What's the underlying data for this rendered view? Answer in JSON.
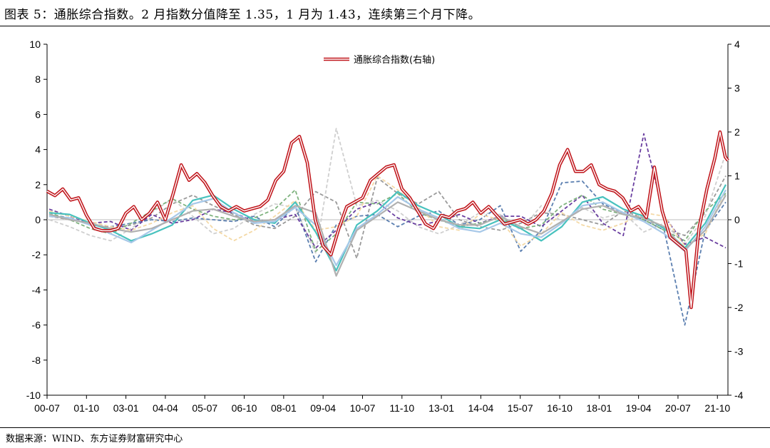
{
  "title": "图表 5：通胀综合指数。2 月指数分值降至 1.35，1 月为 1.43，连续第三个月下降。",
  "source": "数据来源：WIND、东方证券财富研究中心",
  "chart_data": {
    "type": "line",
    "title": "",
    "xlabel": "",
    "ylabel": "",
    "left_ylim": [
      -10,
      10
    ],
    "right_ylim": [
      -4,
      4
    ],
    "left_ticks": [
      "10",
      "8",
      "6",
      "4",
      "2",
      "0",
      "-2",
      "-4",
      "-6",
      "-8",
      "-10"
    ],
    "right_ticks": [
      "4",
      "3",
      "2",
      "1",
      "0",
      "-1",
      "-2",
      "-3",
      "-4"
    ],
    "x_tick_labels": [
      "00-07",
      "01-10",
      "03-01",
      "04-04",
      "05-07",
      "06-10",
      "08-01",
      "09-04",
      "10-07",
      "11-10",
      "13-01",
      "14-04",
      "15-07",
      "16-10",
      "18-01",
      "19-04",
      "20-07",
      "21-10"
    ],
    "legend": [
      {
        "name": "通胀综合指数(右轴)",
        "color": "#c0161c",
        "style": "double-line"
      }
    ],
    "legend_position": "top-center",
    "grid": false,
    "main_series": {
      "name": "通胀综合指数(右轴)",
      "axis": "right",
      "color": "#c0161c",
      "points": [
        [
          "2000-07",
          0.65
        ],
        [
          "2000-10",
          0.55
        ],
        [
          "2001-01",
          0.7
        ],
        [
          "2001-04",
          0.45
        ],
        [
          "2001-07",
          0.5
        ],
        [
          "2001-10",
          0.1
        ],
        [
          "2002-01",
          -0.2
        ],
        [
          "2002-04",
          -0.25
        ],
        [
          "2002-07",
          -0.25
        ],
        [
          "2002-10",
          -0.2
        ],
        [
          "2003-01",
          0.15
        ],
        [
          "2003-04",
          0.3
        ],
        [
          "2003-07",
          0.0
        ],
        [
          "2003-10",
          0.15
        ],
        [
          "2004-01",
          0.4
        ],
        [
          "2004-04",
          0.0
        ],
        [
          "2004-07",
          0.6
        ],
        [
          "2004-10",
          1.25
        ],
        [
          "2005-01",
          0.9
        ],
        [
          "2005-04",
          1.05
        ],
        [
          "2005-07",
          0.85
        ],
        [
          "2005-10",
          0.55
        ],
        [
          "2006-01",
          0.3
        ],
        [
          "2006-04",
          0.2
        ],
        [
          "2006-07",
          0.3
        ],
        [
          "2006-10",
          0.2
        ],
        [
          "2007-01",
          0.25
        ],
        [
          "2007-04",
          0.3
        ],
        [
          "2007-07",
          0.45
        ],
        [
          "2007-10",
          0.9
        ],
        [
          "2008-01",
          1.1
        ],
        [
          "2008-04",
          1.75
        ],
        [
          "2008-07",
          1.9
        ],
        [
          "2008-10",
          1.3
        ],
        [
          "2009-01",
          0.0
        ],
        [
          "2009-04",
          -0.6
        ],
        [
          "2009-07",
          -0.8
        ],
        [
          "2009-10",
          -0.2
        ],
        [
          "2010-01",
          0.3
        ],
        [
          "2010-04",
          0.4
        ],
        [
          "2010-07",
          0.5
        ],
        [
          "2010-10",
          0.9
        ],
        [
          "2011-01",
          1.05
        ],
        [
          "2011-04",
          1.2
        ],
        [
          "2011-07",
          1.25
        ],
        [
          "2011-10",
          0.7
        ],
        [
          "2012-01",
          0.5
        ],
        [
          "2012-04",
          0.2
        ],
        [
          "2012-07",
          -0.1
        ],
        [
          "2012-10",
          -0.2
        ],
        [
          "2013-01",
          0.1
        ],
        [
          "2013-04",
          0.05
        ],
        [
          "2013-07",
          0.2
        ],
        [
          "2013-10",
          0.25
        ],
        [
          "2014-01",
          0.4
        ],
        [
          "2014-04",
          0.15
        ],
        [
          "2014-07",
          0.3
        ],
        [
          "2014-10",
          0.1
        ],
        [
          "2015-01",
          -0.1
        ],
        [
          "2015-04",
          -0.05
        ],
        [
          "2015-07",
          0.0
        ],
        [
          "2015-10",
          -0.1
        ],
        [
          "2016-01",
          0.0
        ],
        [
          "2016-04",
          0.2
        ],
        [
          "2016-07",
          0.6
        ],
        [
          "2016-10",
          1.25
        ],
        [
          "2017-01",
          1.6
        ],
        [
          "2017-04",
          1.1
        ],
        [
          "2017-07",
          1.1
        ],
        [
          "2017-10",
          1.25
        ],
        [
          "2018-01",
          0.8
        ],
        [
          "2018-04",
          0.7
        ],
        [
          "2018-07",
          0.65
        ],
        [
          "2018-10",
          0.5
        ],
        [
          "2019-01",
          0.2
        ],
        [
          "2019-04",
          0.3
        ],
        [
          "2019-07",
          0.05
        ],
        [
          "2019-10",
          1.2
        ],
        [
          "2020-01",
          0.2
        ],
        [
          "2020-04",
          -0.4
        ],
        [
          "2020-07",
          -0.55
        ],
        [
          "2020-10",
          -0.7
        ],
        [
          "2020-12",
          -2.0
        ],
        [
          "2021-03",
          -0.2
        ],
        [
          "2021-06",
          0.7
        ],
        [
          "2021-09",
          1.4
        ],
        [
          "2021-11",
          2.0
        ],
        [
          "2022-01",
          1.43
        ],
        [
          "2022-02",
          1.35
        ]
      ]
    },
    "background_series": [
      {
        "color": "#9a9a9a",
        "dash": true,
        "values": [
          0.2,
          0.0,
          -0.2,
          -0.5,
          -0.3,
          0.1,
          0.9,
          1.4,
          0.8,
          0.3,
          -0.3,
          -0.5,
          0.2,
          1.6,
          1.0,
          -2.2,
          2.4,
          1.5,
          0.9,
          1.6,
          0.0,
          -0.4,
          -0.6,
          -0.2,
          0.4,
          0.3,
          0.0,
          -0.3,
          0.5,
          0.1,
          -0.5,
          -0.9,
          0.4,
          2.5
        ]
      },
      {
        "color": "#cfcfcf",
        "dash": true,
        "values": [
          0.0,
          -0.4,
          -0.9,
          -1.2,
          -0.5,
          0.4,
          1.2,
          0.2,
          -0.8,
          -0.5,
          0.3,
          0.9,
          0.7,
          -1.9,
          5.2,
          0.8,
          1.1,
          0.5,
          -0.4,
          -0.8,
          -0.3,
          0.4,
          0.3,
          -0.6,
          0.8,
          -0.1,
          0.7,
          0.1,
          0.4,
          -0.7,
          -0.2,
          -1.4,
          0.2,
          3.8
        ]
      },
      {
        "color": "#5b7fb0",
        "dash": true,
        "values": [
          0.3,
          0.1,
          -0.3,
          -0.4,
          -0.2,
          0.0,
          -0.1,
          0.1,
          0.0,
          -0.1,
          0.2,
          -0.4,
          0.8,
          -2.4,
          -0.3,
          0.2,
          0.3,
          -0.4,
          0.2,
          0.5,
          -0.3,
          0.0,
          0.8,
          -1.8,
          -0.6,
          2.1,
          2.2,
          0.9,
          0.4,
          0.0,
          -0.6,
          -6.0,
          -0.6,
          1.0
        ]
      },
      {
        "color": "#6a3fa0",
        "dash": true,
        "values": [
          0.6,
          0.2,
          -0.2,
          -0.1,
          -0.6,
          0.3,
          -0.2,
          0.0,
          0.6,
          0.4,
          -0.1,
          0.0,
          0.3,
          -1.6,
          -0.6,
          0.6,
          1.0,
          0.1,
          -0.3,
          -0.1,
          0.3,
          -0.2,
          0.2,
          0.2,
          -0.4,
          0.5,
          1.4,
          -0.2,
          -0.9,
          4.9,
          0.2,
          -1.4,
          -1.0,
          -1.6
        ]
      },
      {
        "color": "#7fb37f",
        "dash": true,
        "values": [
          0.4,
          0.0,
          -0.5,
          -0.8,
          -0.2,
          0.5,
          1.2,
          0.6,
          0.2,
          0.0,
          0.1,
          0.6,
          1.7,
          -1.8,
          -0.8,
          1.0,
          0.9,
          1.5,
          0.4,
          0.0,
          -0.4,
          -0.2,
          0.1,
          -0.5,
          -0.3,
          0.8,
          1.4,
          0.6,
          0.3,
          0.0,
          -0.6,
          -1.2,
          0.5,
          1.5
        ]
      },
      {
        "color": "#f4d9a6",
        "dash": true,
        "values": [
          0.5,
          0.2,
          -0.1,
          -0.4,
          -0.6,
          -0.2,
          0.4,
          0.8,
          -0.5,
          -1.2,
          -0.6,
          0.2,
          1.1,
          -0.6,
          -0.4,
          0.2,
          2.5,
          1.7,
          0.7,
          -0.4,
          -0.6,
          0.3,
          0.0,
          -1.5,
          -0.8,
          0.4,
          -0.3,
          -0.6,
          -0.2,
          0.4,
          0.2,
          -1.5,
          -0.8,
          1.7
        ]
      },
      {
        "color": "#48c2be",
        "dash": false,
        "values": [
          0.4,
          0.3,
          -0.2,
          -0.6,
          -1.2,
          -0.8,
          -0.3,
          1.1,
          1.4,
          0.6,
          0.0,
          -0.2,
          1.0,
          -0.7,
          -2.9,
          -0.3,
          0.5,
          1.6,
          0.8,
          0.3,
          -0.4,
          -0.5,
          0.0,
          -0.5,
          -1.2,
          -0.4,
          1.0,
          1.3,
          0.6,
          0.2,
          -0.5,
          -1.6,
          -0.2,
          2.0
        ]
      },
      {
        "color": "#a7c8e8",
        "dash": false,
        "values": [
          0.2,
          0.1,
          -0.3,
          -0.8,
          -1.3,
          -0.6,
          0.1,
          0.9,
          1.2,
          0.4,
          -0.2,
          -0.1,
          0.7,
          -0.3,
          -2.6,
          -0.5,
          0.3,
          1.3,
          0.6,
          0.1,
          -0.5,
          -0.7,
          -0.2,
          -0.8,
          -1.0,
          -0.2,
          0.8,
          1.0,
          0.4,
          -0.1,
          -0.8,
          -1.8,
          -0.4,
          1.7
        ]
      },
      {
        "color": "#b0b0b0",
        "dash": false,
        "values": [
          0.3,
          0.0,
          -0.2,
          -0.5,
          -0.7,
          -0.5,
          0.0,
          0.5,
          0.6,
          0.2,
          -0.1,
          0.0,
          0.8,
          0.4,
          -3.2,
          -0.6,
          0.2,
          1.0,
          0.5,
          0.0,
          -0.3,
          -0.3,
          0.2,
          -0.4,
          -0.8,
          -0.1,
          0.6,
          0.8,
          0.3,
          0.1,
          -0.4,
          -1.7,
          -0.6,
          1.4
        ]
      }
    ]
  }
}
